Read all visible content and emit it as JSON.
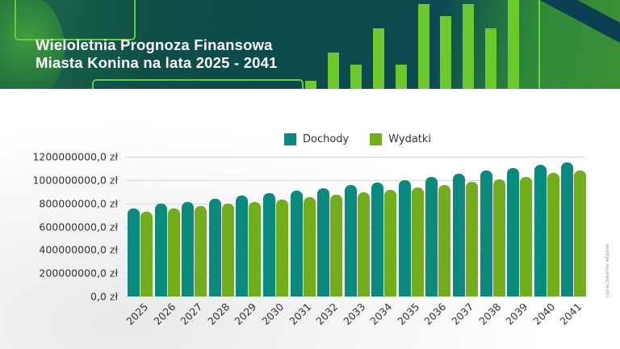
{
  "header": {
    "title_line1": "Wieloletnia Prognoza Finansowa",
    "title_line2": "Miasta Konina na lata 2025 - 2041"
  },
  "legend": [
    {
      "label": "Dochody",
      "color": "#0a8a7e"
    },
    {
      "label": "Wydatki",
      "color": "#74ad1c"
    }
  ],
  "y_axis": {
    "ticks": [
      "1200000000,0 zł",
      "1000000000,0 zł",
      "800000000,0 zł",
      "600000000,0 zł",
      "400000000,0 zł",
      "200000000,0 zł",
      "0,0 zł"
    ]
  },
  "source_note": "opracowanie własne",
  "chart_data": {
    "type": "bar",
    "title": "Wieloletnia Prognoza Finansowa Miasta Konina na lata 2025 - 2041",
    "xlabel": "",
    "ylabel": "",
    "ylim": [
      0,
      1200000000
    ],
    "grid": true,
    "legend_position": "top",
    "categories": [
      "2025",
      "2026",
      "2027",
      "2028",
      "2029",
      "2030",
      "2031",
      "2032",
      "2033",
      "2034",
      "2035",
      "2036",
      "2037",
      "2038",
      "2039",
      "2040",
      "2041"
    ],
    "series": [
      {
        "name": "Dochody",
        "color": "#0a8a7e",
        "values": [
          755000000,
          795000000,
          815000000,
          840000000,
          865000000,
          885000000,
          910000000,
          930000000,
          955000000,
          980000000,
          1000000000,
          1030000000,
          1055000000,
          1080000000,
          1105000000,
          1130000000,
          1155000000
        ]
      },
      {
        "name": "Wydatki",
        "color": "#74ad1c",
        "values": [
          730000000,
          755000000,
          775000000,
          795000000,
          815000000,
          835000000,
          855000000,
          875000000,
          895000000,
          915000000,
          935000000,
          960000000,
          985000000,
          1005000000,
          1030000000,
          1060000000,
          1085000000
        ]
      }
    ],
    "y_tick_labels": [
      "0,0 zł",
      "200000000,0 zł",
      "400000000,0 zł",
      "600000000,0 zł",
      "800000000,0 zł",
      "1000000000,0 zł",
      "1200000000,0 zł"
    ]
  }
}
